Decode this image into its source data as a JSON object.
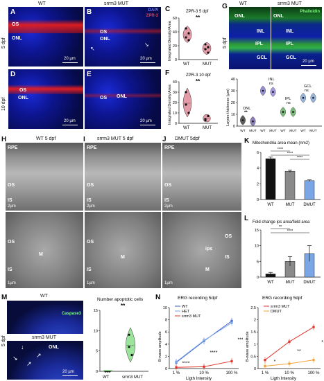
{
  "row_label_5dpf": "5 dpf",
  "row_label_10dpf": "10 dpf",
  "col_wt": "WT",
  "col_mut": "srrm3 MUT",
  "panels": {
    "A": {
      "letter": "A",
      "os": "OS",
      "onl": "ONL",
      "scale": "20 µm"
    },
    "B": {
      "letter": "B",
      "os": "OS",
      "onl": "ONL",
      "dapi": "DAPI",
      "zpr": "ZPR-3",
      "scale": "20 µm"
    },
    "C": {
      "letter": "C",
      "title": "ZPR-3 5 dpf",
      "ylabel": "Integrated Density/Area",
      "sig": "**",
      "x": [
        "WT",
        "MUT"
      ]
    },
    "D": {
      "letter": "D",
      "os": "OS",
      "onl": "ONL",
      "scale": "20 µm"
    },
    "E": {
      "letter": "E",
      "os": "OS",
      "onl": "ONL",
      "scale": "20 µm"
    },
    "F": {
      "letter": "F",
      "title": "ZPR-3 10 dpf",
      "ylabel": "Integrated Density/Area",
      "sig": "**",
      "x": [
        "WT",
        "MUT"
      ]
    },
    "G": {
      "letter": "G",
      "wt": "WT",
      "mut": "srrm3 MUT",
      "phalloidin": "Phalloidin",
      "onl": "ONL",
      "inl": "INL",
      "ipl": "IPL",
      "gcl": "GCL",
      "age": "5 dpf",
      "scale": "20 µm",
      "ylabel": "Layers thickness (µm)",
      "groups": [
        "ONL",
        "INL",
        "IPL",
        "GCL"
      ],
      "group_sig": [
        "**",
        "ns",
        "ns",
        "ns"
      ],
      "x": [
        "WT",
        "MUT",
        "WT",
        "MUT",
        "WT",
        "MUT",
        "WT",
        "MUT"
      ]
    },
    "H": {
      "letter": "H",
      "title": "WT 5 dpf",
      "rpe": "RPE",
      "os": "OS",
      "is": "IS",
      "m": "M",
      "scale1": "2µm",
      "scale2": "1µm"
    },
    "I": {
      "letter": "I",
      "title": "srrm3 MUT 5 dpf",
      "rpe": "RPE",
      "os": "OS",
      "is": "IS",
      "m": "M",
      "scale1": "2µm",
      "scale2": "1µm"
    },
    "J": {
      "letter": "J",
      "title": "DMUT 5dpf",
      "rpe": "RPE",
      "os": "OS",
      "is": "IS",
      "ips": "ips",
      "m": "M",
      "scale1": "2µm",
      "scale2": "1µm"
    },
    "K": {
      "letter": "K",
      "title": "Mitochondria area mean (nm2)",
      "sigs": [
        "****",
        "****",
        "****"
      ]
    },
    "L": {
      "letter": "L",
      "title": "Fold change ips area/field area",
      "sigs": [
        "**",
        "****"
      ]
    },
    "M": {
      "letter": "M",
      "wt": "WT",
      "mut": "srrm3 MUT",
      "caspase": "Caspase3",
      "onl": "ONL",
      "age": "5 dpf",
      "scale": "20 µm",
      "chart_title": "Number apoptotic cells",
      "sig": "**",
      "x": [
        "WT",
        "srrm3 MUT"
      ]
    },
    "N": {
      "letter": "N",
      "title1": "ERG recording 5dpf",
      "title2": "ERG recording 5dpf",
      "ylabel": "B-wave amplitude",
      "xlabel": "Ligth Intensity",
      "sigs1": [
        "****",
        "****",
        "****"
      ],
      "sigs2": [
        "*",
        "**",
        "**"
      ]
    }
  },
  "chart_data": [
    {
      "type": "violin",
      "panel": "C",
      "title": "ZPR-3 5 dpf",
      "ylabel": "Integrated Density/Area",
      "categories": [
        "WT",
        "MUT"
      ],
      "points": [
        [
          32,
          38,
          45,
          28
        ],
        [
          15,
          10,
          22,
          18
        ]
      ],
      "ylim": [
        0,
        60
      ],
      "yticks": [
        0,
        20,
        40,
        60
      ],
      "colors": [
        "#d97a8a",
        "#d97a8a"
      ]
    },
    {
      "type": "violin",
      "panel": "F",
      "title": "ZPR-3 10 dpf",
      "ylabel": "Integrated Density/Area",
      "categories": [
        "WT",
        "MUT"
      ],
      "points": [
        [
          30,
          10,
          18
        ],
        [
          3,
          7,
          4
        ]
      ],
      "ylim": [
        0,
        40
      ],
      "yticks": [
        0,
        10,
        20,
        30,
        40
      ],
      "colors": [
        "#d97a8a",
        "#d97a8a"
      ]
    },
    {
      "type": "violin",
      "panel": "G",
      "ylabel": "Layers thickness (µm)",
      "categories": [
        "WT",
        "MUT",
        "WT",
        "MUT",
        "WT",
        "MUT",
        "WT",
        "MUT"
      ],
      "medians": [
        5,
        4,
        30,
        29,
        12,
        12,
        24,
        24
      ],
      "ylim": [
        0,
        40
      ],
      "yticks": [
        0,
        10,
        20,
        30,
        40
      ],
      "colors": [
        "#333333",
        "#6f5fa8",
        "#7b74c8",
        "#8f7fd8",
        "#5aa85a",
        "#5aa85a",
        "#7fa3d6",
        "#7fa3d6"
      ]
    },
    {
      "type": "bar",
      "panel": "K",
      "title": "Mitochondria area mean (nm2)",
      "categories": [
        "WT",
        "MUT",
        "DMUT"
      ],
      "values": [
        5.2,
        3.6,
        2.4
      ],
      "errors": [
        0.2,
        0.15,
        0.1
      ],
      "ylim": [
        0,
        6
      ],
      "yticks": [
        0,
        2,
        4,
        6
      ],
      "colors": [
        "#111111",
        "#8a8a8a",
        "#7aa6e6"
      ]
    },
    {
      "type": "bar",
      "panel": "L",
      "title": "Fold change ips area/field area",
      "categories": [
        "WT",
        "MUT",
        "DMUT"
      ],
      "values": [
        1.0,
        5.0,
        7.5
      ],
      "errors": [
        0.5,
        1.5,
        2.5
      ],
      "ylim": [
        0,
        15
      ],
      "yticks": [
        0,
        5,
        10,
        15
      ],
      "colors": [
        "#111111",
        "#8a8a8a",
        "#7aa6e6"
      ]
    },
    {
      "type": "violin",
      "panel": "M",
      "title": "Number apoptotic cells",
      "categories": [
        "WT",
        "srrm3 MUT"
      ],
      "points": [
        [
          0,
          0,
          0
        ],
        [
          9,
          4,
          6
        ]
      ],
      "ylim": [
        0,
        15
      ],
      "yticks": [
        0,
        5,
        10,
        15
      ],
      "colors": [
        "#7bd97b",
        "#7bd97b"
      ]
    },
    {
      "type": "line",
      "panel": "N-left",
      "title": "ERG recording 5dpf",
      "xlabel": "Ligth Intensity",
      "ylabel": "B-wave amplitude",
      "x": [
        "1 %",
        "10 %",
        "100 %"
      ],
      "ylim": [
        0,
        10
      ],
      "yticks": [
        0,
        2,
        4,
        6,
        8,
        10
      ],
      "series": [
        {
          "name": "WT",
          "values": [
            1.0,
            4.5,
            7.8
          ],
          "color": "#3b5ccc"
        },
        {
          "name": "HET",
          "values": [
            1.1,
            4.6,
            7.5
          ],
          "color": "#7aa6e6"
        },
        {
          "name": "srrm3 MUT",
          "values": [
            0.2,
            0.3,
            1.2
          ],
          "color": "#e0342b"
        }
      ]
    },
    {
      "type": "line",
      "panel": "N-right",
      "title": "ERG recording 5dpf",
      "xlabel": "Ligth Intensity",
      "ylabel": "B-wave amplitude",
      "x": [
        "1 %",
        "10 %",
        "100 %"
      ],
      "ylim": [
        0,
        2.5
      ],
      "yticks": [
        0.0,
        0.5,
        1.0,
        1.5,
        2.0,
        2.5
      ],
      "series": [
        {
          "name": "srrm3 MUT",
          "values": [
            0.35,
            1.1,
            1.7
          ],
          "color": "#e0342b"
        },
        {
          "name": "DMUT",
          "values": [
            0.1,
            0.2,
            0.35
          ],
          "color": "#f0a33a"
        }
      ]
    }
  ]
}
